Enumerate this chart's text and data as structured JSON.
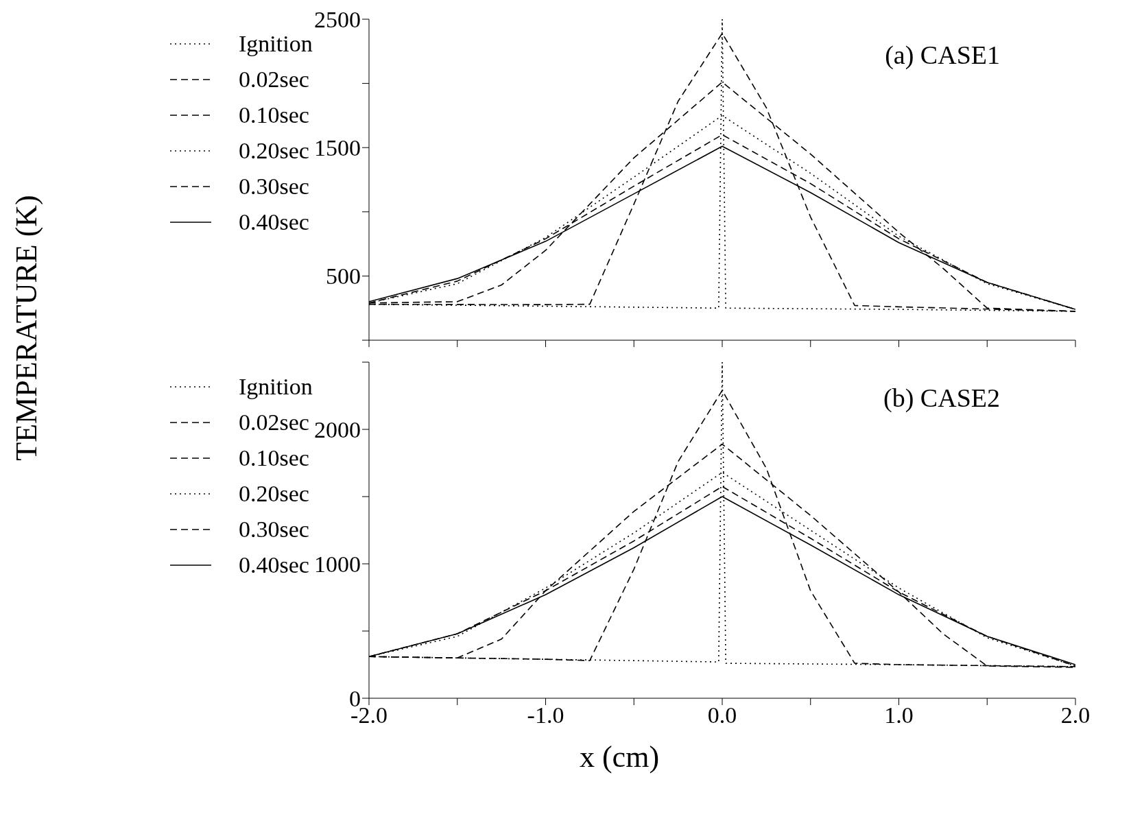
{
  "chart_data": [
    {
      "type": "line",
      "ylabel": "TEMPERATURE (K)",
      "annotations": [
        "(a) CASE1"
      ],
      "legend": "top left",
      "tick_labels": "y",
      "xlim": [
        -2,
        2
      ],
      "ylim": [
        0,
        2500
      ],
      "xticks": [
        {
          "value": -2,
          "label": null
        },
        {
          "value": -1.5,
          "label": null
        },
        {
          "value": -1,
          "label": null
        },
        {
          "value": -0.5,
          "label": null
        },
        {
          "value": 0,
          "label": null
        },
        {
          "value": 0.5,
          "label": null
        },
        {
          "value": 1,
          "label": null
        },
        {
          "value": 1.5,
          "label": null
        },
        {
          "value": 2,
          "label": null
        }
      ],
      "yticks": [
        {
          "value": 0,
          "label": null
        },
        500,
        {
          "value": 1000,
          "label": null
        },
        1500,
        {
          "value": 2000,
          "label": null
        },
        2500
      ],
      "series": [
        {
          "name": "Ignition",
          "color": "#000000",
          "line_style": "dotted",
          "x": [
            -2,
            -1,
            -0.02,
            0,
            0.02,
            1,
            2
          ],
          "values": [
            280,
            265,
            250,
            2500,
            250,
            240,
            225
          ]
        },
        {
          "name": "0.02sec",
          "color": "#000000",
          "line_style": "dashed",
          "x": [
            -2,
            -1,
            -0.75,
            -0.5,
            -0.25,
            0,
            0.25,
            0.5,
            0.75,
            1,
            2
          ],
          "values": [
            280,
            277,
            280,
            1060,
            1860,
            2390,
            1810,
            960,
            270,
            260,
            225
          ]
        },
        {
          "name": "0.10sec",
          "color": "#000000",
          "line_style": "dashed",
          "x": [
            -2,
            -1.5,
            -1.25,
            -1,
            -0.5,
            0,
            0.5,
            1,
            1.25,
            1.5,
            2
          ],
          "values": [
            290,
            300,
            430,
            700,
            1420,
            2010,
            1450,
            840,
            560,
            250,
            225
          ]
        },
        {
          "name": "0.20sec",
          "color": "#000000",
          "line_style": "dotted",
          "x": [
            -2,
            -1.5,
            -1,
            -0.5,
            0,
            0.5,
            1,
            1.5,
            2
          ],
          "values": [
            290,
            440,
            800,
            1270,
            1750,
            1300,
            810,
            440,
            240
          ]
        },
        {
          "name": "0.30sec",
          "color": "#000000",
          "line_style": "dashed",
          "x": [
            -2,
            -1.5,
            -1,
            -0.5,
            0,
            0.5,
            1,
            1.5,
            2
          ],
          "values": [
            290,
            460,
            790,
            1200,
            1600,
            1220,
            790,
            450,
            240
          ]
        },
        {
          "name": "0.40sec",
          "color": "#000000",
          "line_style": "solid",
          "x": [
            -2,
            -1.5,
            -1,
            -0.5,
            0,
            0.5,
            1,
            1.5,
            2
          ],
          "values": [
            300,
            480,
            770,
            1140,
            1510,
            1150,
            760,
            450,
            240
          ]
        }
      ]
    },
    {
      "type": "line",
      "xlabel": "x (cm)",
      "annotations": [
        "(b) CASE2"
      ],
      "legend": "top left",
      "xlim": [
        -2,
        2
      ],
      "ylim": [
        0,
        2500
      ],
      "xticks": [
        {
          "value": -2,
          "label": "-2.0"
        },
        {
          "value": -1.5,
          "label": null
        },
        {
          "value": -1,
          "label": "-1.0"
        },
        {
          "value": -0.5,
          "label": null
        },
        {
          "value": 0,
          "label": "0.0"
        },
        {
          "value": 0.5,
          "label": null
        },
        {
          "value": 1,
          "label": "1.0"
        },
        {
          "value": 1.5,
          "label": null
        },
        {
          "value": 2,
          "label": "2.0"
        }
      ],
      "yticks": [
        0,
        {
          "value": 500,
          "label": null
        },
        1000,
        {
          "value": 1500,
          "label": null
        },
        2000,
        {
          "value": 2500,
          "label": null
        }
      ],
      "series": [
        {
          "name": "Ignition",
          "color": "#000000",
          "line_style": "dotted",
          "x": [
            -2,
            -1,
            -0.02,
            0,
            0.02,
            1,
            2
          ],
          "values": [
            310,
            290,
            270,
            2500,
            260,
            250,
            235
          ]
        },
        {
          "name": "0.02sec",
          "color": "#000000",
          "line_style": "dashed",
          "x": [
            -2,
            -1,
            -0.75,
            -0.5,
            -0.25,
            0,
            0.25,
            0.5,
            0.75,
            1,
            2
          ],
          "values": [
            310,
            290,
            280,
            960,
            1760,
            2290,
            1710,
            800,
            260,
            250,
            235
          ]
        },
        {
          "name": "0.10sec",
          "color": "#000000",
          "line_style": "dashed",
          "x": [
            -2,
            -1.5,
            -1.25,
            -1,
            -0.5,
            0,
            0.5,
            1,
            1.25,
            1.5,
            2
          ],
          "values": [
            310,
            300,
            440,
            800,
            1390,
            1890,
            1360,
            790,
            480,
            240,
            230
          ]
        },
        {
          "name": "0.20sec",
          "color": "#000000",
          "line_style": "dotted",
          "x": [
            -2,
            -1.5,
            -1,
            -0.5,
            0,
            0.5,
            1,
            1.5,
            2
          ],
          "values": [
            310,
            460,
            820,
            1230,
            1680,
            1250,
            820,
            450,
            240
          ]
        },
        {
          "name": "0.30sec",
          "color": "#000000",
          "line_style": "dashed",
          "x": [
            -2,
            -1.5,
            -1,
            -0.5,
            0,
            0.5,
            1,
            1.5,
            2
          ],
          "values": [
            310,
            480,
            800,
            1170,
            1575,
            1190,
            790,
            460,
            240
          ]
        },
        {
          "name": "0.40sec",
          "color": "#000000",
          "line_style": "solid",
          "x": [
            -2,
            -1.5,
            -1,
            -0.5,
            0,
            0.5,
            1,
            1.5,
            2
          ],
          "values": [
            310,
            480,
            770,
            1120,
            1500,
            1140,
            770,
            460,
            250
          ]
        }
      ]
    }
  ]
}
